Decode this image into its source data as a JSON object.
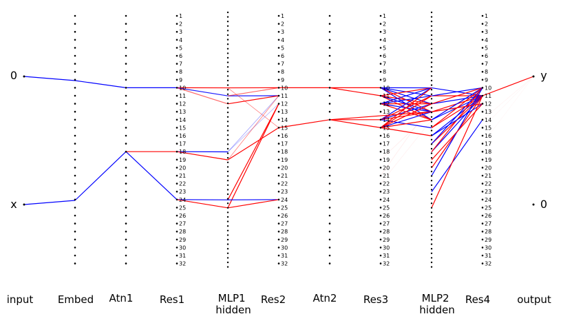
{
  "columns": [
    {
      "id": "input",
      "label": "input"
    },
    {
      "id": "embed",
      "label": "Embed"
    },
    {
      "id": "atn1",
      "label": "Atn1"
    },
    {
      "id": "res1",
      "label": "Res1"
    },
    {
      "id": "mlp1",
      "label": "MLP1 hidden"
    },
    {
      "id": "res2",
      "label": "Res2"
    },
    {
      "id": "atn2",
      "label": "Atn2"
    },
    {
      "id": "res3",
      "label": "Res3"
    },
    {
      "id": "mlp2",
      "label": "MLP2 hidden"
    },
    {
      "id": "res4",
      "label": "Res4"
    },
    {
      "id": "output",
      "label": "output"
    }
  ],
  "input_labels": [
    "0",
    "x"
  ],
  "output_labels": [
    "y",
    "0"
  ],
  "residual_node_labels": [
    "1",
    "2",
    "3",
    "4",
    "5",
    "6",
    "7",
    "8",
    "9",
    "10",
    "11",
    "12",
    "13",
    "14",
    "15",
    "16",
    "17",
    "18",
    "19",
    "20",
    "21",
    "22",
    "23",
    "24",
    "25",
    "26",
    "27",
    "28",
    "29",
    "30",
    "31",
    "32"
  ],
  "colors": {
    "positive": "#ff0000",
    "negative": "#0000ff",
    "node": "#000000"
  },
  "edges": [
    {
      "from": [
        "input",
        0
      ],
      "to": [
        "embed",
        0
      ],
      "weight": -1
    },
    {
      "from": [
        "input",
        1
      ],
      "to": [
        "embed",
        1
      ],
      "weight": -1
    },
    {
      "from": [
        "embed",
        0
      ],
      "to": [
        "atn1",
        10
      ],
      "weight": -1
    },
    {
      "from": [
        "embed",
        1
      ],
      "to": [
        "atn1",
        18
      ],
      "weight": -1
    },
    {
      "from": [
        "atn1",
        10
      ],
      "to": [
        "res1",
        10
      ],
      "weight": -1
    },
    {
      "from": [
        "atn1",
        18
      ],
      "to": [
        "res1",
        18
      ],
      "weight": 1
    },
    {
      "from": [
        "atn1",
        18
      ],
      "to": [
        "res1",
        24
      ],
      "weight": -1
    },
    {
      "from": [
        "res1",
        10
      ],
      "to": [
        "mlp1",
        10
      ],
      "weight": 1
    },
    {
      "from": [
        "res1",
        10
      ],
      "to": [
        "mlp1",
        11
      ],
      "weight": -0.9
    },
    {
      "from": [
        "res1",
        10
      ],
      "to": [
        "mlp1",
        12
      ],
      "weight": 0.6
    },
    {
      "from": [
        "res1",
        18
      ],
      "to": [
        "mlp1",
        18
      ],
      "weight": -1
    },
    {
      "from": [
        "res1",
        18
      ],
      "to": [
        "mlp1",
        19
      ],
      "weight": 1
    },
    {
      "from": [
        "res1",
        24
      ],
      "to": [
        "mlp1",
        24
      ],
      "weight": -1
    },
    {
      "from": [
        "res1",
        24
      ],
      "to": [
        "mlp1",
        25
      ],
      "weight": 1
    },
    {
      "from": [
        "mlp1",
        10
      ],
      "to": [
        "res2",
        10
      ],
      "weight": 1
    },
    {
      "from": [
        "mlp1",
        11
      ],
      "to": [
        "res2",
        11
      ],
      "weight": -1
    },
    {
      "from": [
        "mlp1",
        12
      ],
      "to": [
        "res2",
        11
      ],
      "weight": 1
    },
    {
      "from": [
        "mlp1",
        10
      ],
      "to": [
        "res2",
        15
      ],
      "weight": 0.5
    },
    {
      "from": [
        "mlp1",
        18
      ],
      "to": [
        "res2",
        11
      ],
      "weight": -0.4
    },
    {
      "from": [
        "mlp1",
        18
      ],
      "to": [
        "res2",
        12
      ],
      "weight": -0.3
    },
    {
      "from": [
        "mlp1",
        19
      ],
      "to": [
        "res2",
        11
      ],
      "weight": 0.5
    },
    {
      "from": [
        "mlp1",
        19
      ],
      "to": [
        "res2",
        15
      ],
      "weight": 1
    },
    {
      "from": [
        "mlp1",
        24
      ],
      "to": [
        "res2",
        12
      ],
      "weight": 1
    },
    {
      "from": [
        "mlp1",
        25
      ],
      "to": [
        "res2",
        12
      ],
      "weight": 1
    },
    {
      "from": [
        "mlp1",
        24
      ],
      "to": [
        "res2",
        24
      ],
      "weight": -1
    },
    {
      "from": [
        "mlp1",
        25
      ],
      "to": [
        "res2",
        24
      ],
      "weight": 1
    },
    {
      "from": [
        "mlp1",
        11
      ],
      "to": [
        "res2",
        10
      ],
      "weight": 0.6
    },
    {
      "from": [
        "res2",
        10
      ],
      "to": [
        "atn2",
        10
      ],
      "weight": 1
    },
    {
      "from": [
        "res2",
        15
      ],
      "to": [
        "atn2",
        14
      ],
      "weight": 1
    },
    {
      "from": [
        "atn2",
        10
      ],
      "to": [
        "res3",
        10
      ],
      "weight": 1
    },
    {
      "from": [
        "atn2",
        10
      ],
      "to": [
        "res3",
        11
      ],
      "weight": 1
    },
    {
      "from": [
        "atn2",
        14
      ],
      "to": [
        "res3",
        14
      ],
      "weight": 1
    },
    {
      "from": [
        "atn2",
        14
      ],
      "to": [
        "res3",
        15
      ],
      "weight": 1
    },
    {
      "from": [
        "res3",
        10
      ],
      "to": [
        "mlp2",
        10
      ],
      "weight": -1
    },
    {
      "from": [
        "res3",
        10
      ],
      "to": [
        "mlp2",
        11
      ],
      "weight": -1
    },
    {
      "from": [
        "res3",
        10
      ],
      "to": [
        "mlp2",
        12
      ],
      "weight": -1
    },
    {
      "from": [
        "res3",
        10
      ],
      "to": [
        "mlp2",
        13
      ],
      "weight": 1
    },
    {
      "from": [
        "res3",
        10
      ],
      "to": [
        "mlp2",
        14
      ],
      "weight": -1
    },
    {
      "from": [
        "res3",
        11
      ],
      "to": [
        "mlp2",
        10
      ],
      "weight": 1
    },
    {
      "from": [
        "res3",
        11
      ],
      "to": [
        "mlp2",
        12
      ],
      "weight": 1
    },
    {
      "from": [
        "res3",
        11
      ],
      "to": [
        "mlp2",
        13
      ],
      "weight": -1
    },
    {
      "from": [
        "res3",
        11
      ],
      "to": [
        "mlp2",
        14
      ],
      "weight": 1
    },
    {
      "from": [
        "res3",
        12
      ],
      "to": [
        "mlp2",
        10
      ],
      "weight": -1
    },
    {
      "from": [
        "res3",
        12
      ],
      "to": [
        "mlp2",
        11
      ],
      "weight": -1
    },
    {
      "from": [
        "res3",
        12
      ],
      "to": [
        "mlp2",
        12
      ],
      "weight": 1
    },
    {
      "from": [
        "res3",
        12
      ],
      "to": [
        "mlp2",
        13
      ],
      "weight": -1
    },
    {
      "from": [
        "res3",
        12
      ],
      "to": [
        "mlp2",
        14
      ],
      "weight": 1
    },
    {
      "from": [
        "res3",
        14
      ],
      "to": [
        "mlp2",
        10
      ],
      "weight": -1
    },
    {
      "from": [
        "res3",
        14
      ],
      "to": [
        "mlp2",
        11
      ],
      "weight": 1
    },
    {
      "from": [
        "res3",
        14
      ],
      "to": [
        "mlp2",
        12
      ],
      "weight": -1
    },
    {
      "from": [
        "res3",
        14
      ],
      "to": [
        "mlp2",
        13
      ],
      "weight": 1
    },
    {
      "from": [
        "res3",
        14
      ],
      "to": [
        "mlp2",
        15
      ],
      "weight": -1
    },
    {
      "from": [
        "res3",
        15
      ],
      "to": [
        "mlp2",
        10
      ],
      "weight": 1
    },
    {
      "from": [
        "res3",
        15
      ],
      "to": [
        "mlp2",
        11
      ],
      "weight": 1
    },
    {
      "from": [
        "res3",
        15
      ],
      "to": [
        "mlp2",
        12
      ],
      "weight": 1
    },
    {
      "from": [
        "res3",
        15
      ],
      "to": [
        "mlp2",
        13
      ],
      "weight": -1
    },
    {
      "from": [
        "res3",
        15
      ],
      "to": [
        "mlp2",
        14
      ],
      "weight": 1
    },
    {
      "from": [
        "res3",
        15
      ],
      "to": [
        "mlp2",
        16
      ],
      "weight": 1
    },
    {
      "from": [
        "res3",
        19
      ],
      "to": [
        "mlp2",
        13
      ],
      "weight": 0.08
    },
    {
      "from": [
        "res3",
        21
      ],
      "to": [
        "mlp2",
        12
      ],
      "weight": 0.08
    },
    {
      "from": [
        "res3",
        22
      ],
      "to": [
        "mlp2",
        14
      ],
      "weight": 0.06
    },
    {
      "from": [
        "atn2",
        14
      ],
      "to": [
        "mlp2",
        13
      ],
      "weight": 1
    },
    {
      "from": [
        "mlp2",
        10
      ],
      "to": [
        "res4",
        11
      ],
      "weight": -1
    },
    {
      "from": [
        "mlp2",
        11
      ],
      "to": [
        "res4",
        11
      ],
      "weight": 1
    },
    {
      "from": [
        "mlp2",
        12
      ],
      "to": [
        "res4",
        11
      ],
      "weight": -1
    },
    {
      "from": [
        "mlp2",
        13
      ],
      "to": [
        "res4",
        11
      ],
      "weight": 1
    },
    {
      "from": [
        "mlp2",
        14
      ],
      "to": [
        "res4",
        11
      ],
      "weight": -1
    },
    {
      "from": [
        "mlp2",
        15
      ],
      "to": [
        "res4",
        11
      ],
      "weight": 1
    },
    {
      "from": [
        "mlp2",
        16
      ],
      "to": [
        "res4",
        11
      ],
      "weight": -1
    },
    {
      "from": [
        "mlp2",
        17
      ],
      "to": [
        "res4",
        11
      ],
      "weight": 1
    },
    {
      "from": [
        "mlp2",
        18
      ],
      "to": [
        "res4",
        11
      ],
      "weight": -1
    },
    {
      "from": [
        "mlp2",
        20
      ],
      "to": [
        "res4",
        11
      ],
      "weight": 1
    },
    {
      "from": [
        "mlp2",
        11
      ],
      "to": [
        "res4",
        10
      ],
      "weight": -1
    },
    {
      "from": [
        "mlp2",
        12
      ],
      "to": [
        "res4",
        10
      ],
      "weight": 1
    },
    {
      "from": [
        "mlp2",
        14
      ],
      "to": [
        "res4",
        10
      ],
      "weight": -1
    },
    {
      "from": [
        "mlp2",
        15
      ],
      "to": [
        "res4",
        10
      ],
      "weight": 1
    },
    {
      "from": [
        "mlp2",
        17
      ],
      "to": [
        "res4",
        10
      ],
      "weight": -1
    },
    {
      "from": [
        "mlp2",
        18
      ],
      "to": [
        "res4",
        10
      ],
      "weight": 1
    },
    {
      "from": [
        "mlp2",
        21
      ],
      "to": [
        "res4",
        10
      ],
      "weight": -1
    },
    {
      "from": [
        "mlp2",
        13
      ],
      "to": [
        "res4",
        12
      ],
      "weight": 1
    },
    {
      "from": [
        "mlp2",
        16
      ],
      "to": [
        "res4",
        12
      ],
      "weight": -1
    },
    {
      "from": [
        "mlp2",
        19
      ],
      "to": [
        "res4",
        12
      ],
      "weight": 1
    },
    {
      "from": [
        "mlp2",
        23
      ],
      "to": [
        "res4",
        14
      ],
      "weight": -1
    },
    {
      "from": [
        "mlp2",
        25
      ],
      "to": [
        "res4",
        11
      ],
      "weight": 1
    },
    {
      "from": [
        "res4",
        11
      ],
      "to": [
        "output",
        0
      ],
      "weight": 1
    },
    {
      "from": [
        "res4",
        14
      ],
      "to": [
        "output",
        0
      ],
      "weight": 0.05
    },
    {
      "from": [
        "res4",
        15
      ],
      "to": [
        "output",
        0
      ],
      "weight": 0.04
    },
    {
      "from": [
        "res4",
        17
      ],
      "to": [
        "output",
        0
      ],
      "weight": 0.03
    }
  ]
}
